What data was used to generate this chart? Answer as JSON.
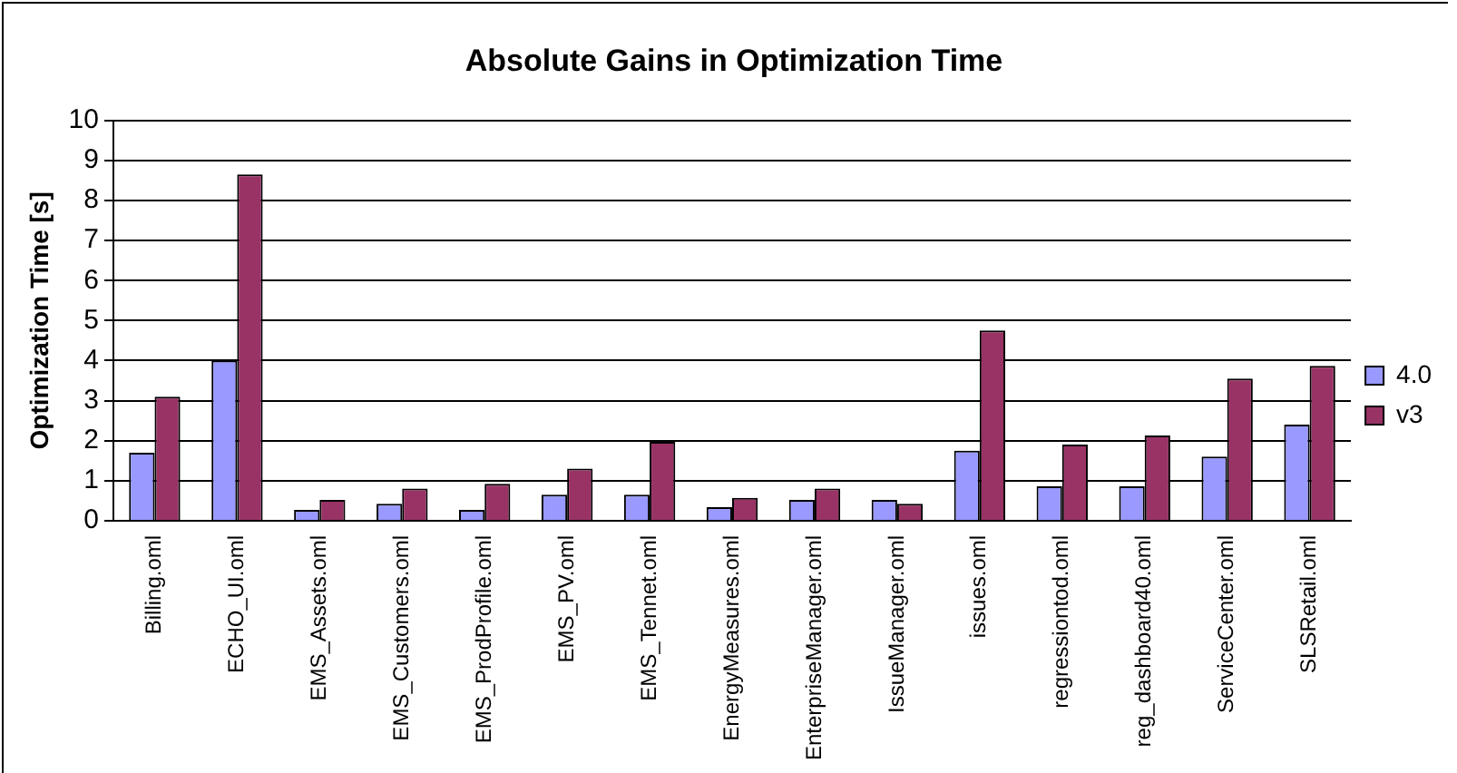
{
  "chart_data": {
    "type": "bar",
    "title": "Absolute Gains in Optimization Time",
    "ylabel": "Optimization Time [s]",
    "categories": [
      "Billing.oml",
      "ECHO_UI.oml",
      "EMS_Assets.oml",
      "EMS_Customers.oml",
      "EMS_ProdProfile.oml",
      "EMS_PV.oml",
      "EMS_Tennet.oml",
      "EnergyMeasures.oml",
      "EnterpriseManager.oml",
      "IssueManager.oml",
      "issues.oml",
      "regressiontod.oml",
      "reg_dashboard40.oml",
      "ServiceCenter.oml",
      "SLSRetail.oml"
    ],
    "series": [
      {
        "name": "4.0",
        "color": "#9999ff",
        "values": [
          1.7,
          4.0,
          0.27,
          0.42,
          0.27,
          0.65,
          0.65,
          0.34,
          0.52,
          0.52,
          1.75,
          0.86,
          0.86,
          1.6,
          2.4
        ]
      },
      {
        "name": "v3",
        "color": "#993366",
        "values": [
          3.1,
          8.65,
          0.52,
          0.8,
          0.92,
          1.3,
          1.97,
          0.57,
          0.8,
          0.42,
          4.75,
          1.9,
          2.13,
          3.55,
          3.87
        ]
      }
    ],
    "ylim": [
      0,
      10
    ],
    "yticks": [
      0,
      1,
      2,
      3,
      4,
      5,
      6,
      7,
      8,
      9,
      10
    ],
    "grid": "y",
    "legend": "right"
  }
}
